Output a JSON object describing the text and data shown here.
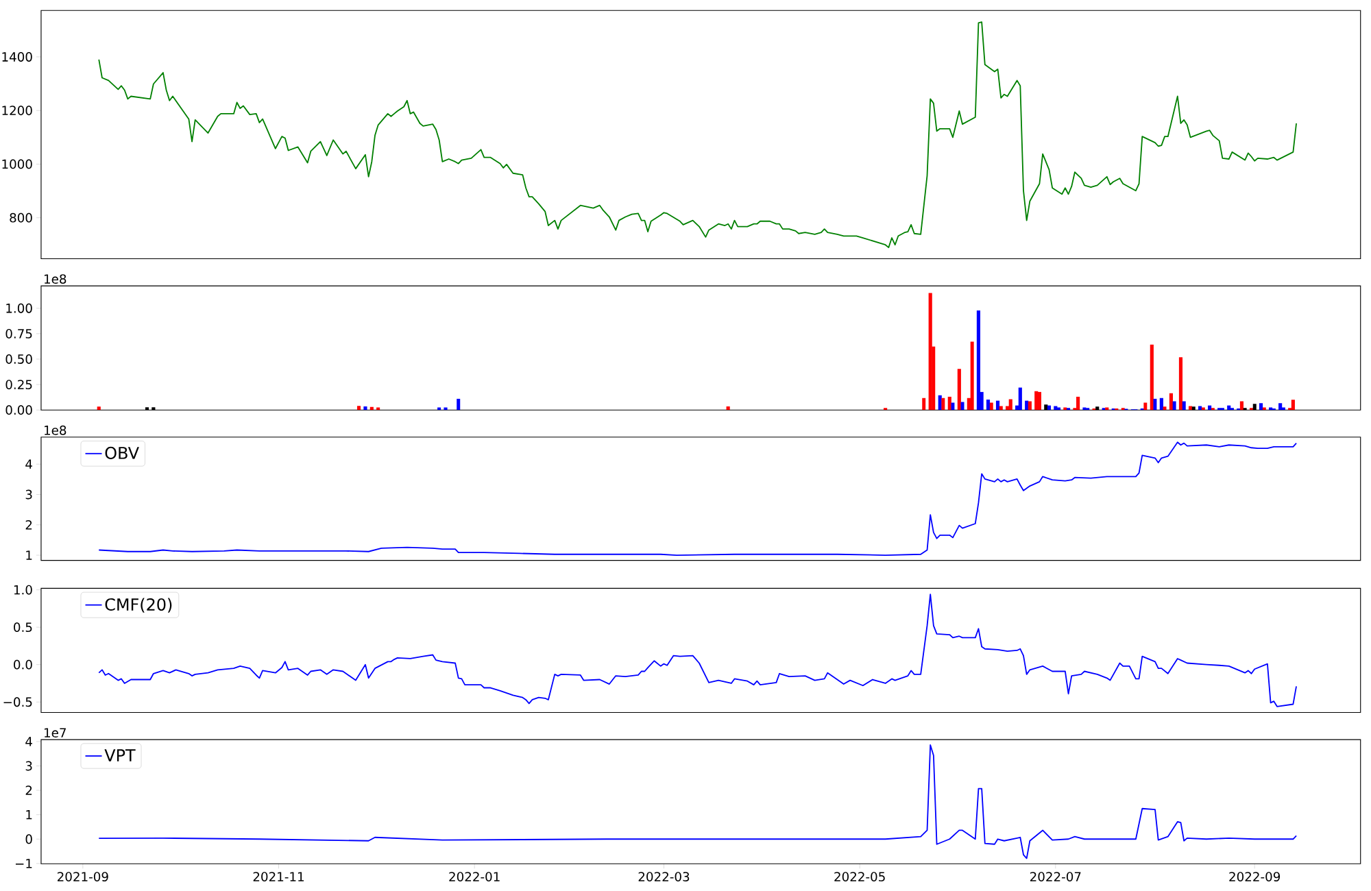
{
  "chart_data": [
    {
      "type": "line",
      "xlim": [
        "2021-08-19",
        "2022-10-04"
      ],
      "ylim": [
        647,
        1573
      ],
      "yticks": [
        800,
        1000,
        1200,
        1400
      ],
      "tick_labels": "y",
      "series": [
        {
          "color": "#008000",
          "x": [
            "2021-09-06",
            "2021-09-07",
            "2021-09-09",
            "2021-09-12",
            "2021-09-13",
            "2021-09-14",
            "2021-09-15",
            "2021-09-16",
            "2021-09-22",
            "2021-09-23",
            "2021-09-26",
            "2021-09-27",
            "2021-09-28",
            "2021-09-29",
            "2021-10-04",
            "2021-10-05",
            "2021-10-06",
            "2021-10-10",
            "2021-10-13",
            "2021-10-14",
            "2021-10-18",
            "2021-10-19",
            "2021-10-20",
            "2021-10-21",
            "2021-10-23",
            "2021-10-25",
            "2021-10-26",
            "2021-10-27",
            "2021-10-31",
            "2021-11-02",
            "2021-11-03",
            "2021-11-04",
            "2021-11-07",
            "2021-11-10",
            "2021-11-11",
            "2021-11-14",
            "2021-11-16",
            "2021-11-18",
            "2021-11-21",
            "2021-11-22",
            "2021-11-25",
            "2021-11-28",
            "2021-11-29",
            "2021-11-30",
            "2021-12-01",
            "2021-12-02",
            "2021-12-05",
            "2021-12-06",
            "2021-12-07",
            "2021-12-08",
            "2021-12-10",
            "2021-12-11",
            "2021-12-12",
            "2021-12-13",
            "2021-12-15",
            "2021-12-16",
            "2021-12-19",
            "2021-12-20",
            "2021-12-21",
            "2021-12-22",
            "2021-12-24",
            "2021-12-26",
            "2021-12-27",
            "2021-12-28",
            "2021-12-31",
            "2022-01-03",
            "2022-01-04",
            "2022-01-06",
            "2022-01-09",
            "2022-01-10",
            "2022-01-11",
            "2022-01-13",
            "2022-01-16",
            "2022-01-17",
            "2022-01-18",
            "2022-01-19",
            "2022-01-21",
            "2022-01-23",
            "2022-01-24",
            "2022-01-26",
            "2022-01-27",
            "2022-01-28",
            "2022-02-03",
            "2022-02-07",
            "2022-02-09",
            "2022-02-10",
            "2022-02-12",
            "2022-02-14",
            "2022-02-15",
            "2022-02-17",
            "2022-02-19",
            "2022-02-21",
            "2022-02-22",
            "2022-02-23",
            "2022-02-24",
            "2022-02-25",
            "2022-02-28",
            "2022-03-01",
            "2022-03-02",
            "2022-03-06",
            "2022-03-07",
            "2022-03-10",
            "2022-03-12",
            "2022-03-14",
            "2022-03-15",
            "2022-03-18",
            "2022-03-20",
            "2022-03-21",
            "2022-03-22",
            "2022-03-23",
            "2022-03-24",
            "2022-03-27",
            "2022-03-29",
            "2022-03-30",
            "2022-03-31",
            "2022-04-03",
            "2022-04-05",
            "2022-04-06",
            "2022-04-07",
            "2022-04-09",
            "2022-04-11",
            "2022-04-12",
            "2022-04-14",
            "2022-04-17",
            "2022-04-19",
            "2022-04-20",
            "2022-04-21",
            "2022-04-24",
            "2022-04-26",
            "2022-04-28",
            "2022-04-30",
            "2022-05-02",
            "2022-05-09",
            "2022-05-10",
            "2022-05-11",
            "2022-05-12",
            "2022-05-13",
            "2022-05-15",
            "2022-05-16",
            "2022-05-17",
            "2022-05-18",
            "2022-05-20",
            "2022-05-22",
            "2022-05-23",
            "2022-05-24",
            "2022-05-25",
            "2022-05-26",
            "2022-05-29",
            "2022-05-30",
            "2022-06-01",
            "2022-06-02",
            "2022-06-06",
            "2022-06-07",
            "2022-06-08",
            "2022-06-09",
            "2022-06-12",
            "2022-06-13",
            "2022-06-14",
            "2022-06-15",
            "2022-06-16",
            "2022-06-19",
            "2022-06-20",
            "2022-06-21",
            "2022-06-22",
            "2022-06-23",
            "2022-06-26",
            "2022-06-27",
            "2022-06-29",
            "2022-06-30",
            "2022-07-03",
            "2022-07-04",
            "2022-07-05",
            "2022-07-06",
            "2022-07-07",
            "2022-07-09",
            "2022-07-10",
            "2022-07-12",
            "2022-07-14",
            "2022-07-17",
            "2022-07-18",
            "2022-07-19",
            "2022-07-21",
            "2022-07-22",
            "2022-07-26",
            "2022-07-27",
            "2022-07-28",
            "2022-08-01",
            "2022-08-02",
            "2022-08-03",
            "2022-08-04",
            "2022-08-05",
            "2022-08-08",
            "2022-08-09",
            "2022-08-10",
            "2022-08-11",
            "2022-08-12",
            "2022-08-17",
            "2022-08-18",
            "2022-08-19",
            "2022-08-21",
            "2022-08-22",
            "2022-08-24",
            "2022-08-25",
            "2022-08-29",
            "2022-08-30",
            "2022-08-31",
            "2022-09-01",
            "2022-09-02",
            "2022-09-05",
            "2022-09-07",
            "2022-09-08",
            "2022-09-13",
            "2022-09-14"
          ],
          "values": [
            1390,
            1322,
            1312,
            1279,
            1292,
            1276,
            1243,
            1253,
            1243,
            1299,
            1341,
            1276,
            1237,
            1253,
            1168,
            1084,
            1165,
            1116,
            1178,
            1188,
            1188,
            1230,
            1208,
            1217,
            1185,
            1188,
            1155,
            1168,
            1058,
            1103,
            1097,
            1051,
            1064,
            1005,
            1048,
            1084,
            1032,
            1090,
            1038,
            1048,
            983,
            1035,
            953,
            1009,
            1107,
            1146,
            1188,
            1178,
            1188,
            1198,
            1214,
            1237,
            1188,
            1194,
            1152,
            1142,
            1149,
            1129,
            1090,
            1009,
            1019,
            1009,
            1002,
            1015,
            1022,
            1054,
            1025,
            1025,
            1002,
            986,
            999,
            966,
            960,
            911,
            878,
            878,
            852,
            823,
            771,
            790,
            758,
            790,
            846,
            836,
            846,
            829,
            803,
            754,
            790,
            803,
            813,
            816,
            790,
            790,
            748,
            787,
            810,
            819,
            816,
            787,
            774,
            790,
            767,
            728,
            754,
            777,
            771,
            777,
            758,
            790,
            767,
            767,
            777,
            777,
            787,
            787,
            777,
            777,
            758,
            758,
            751,
            741,
            745,
            738,
            745,
            758,
            745,
            738,
            732,
            732,
            732,
            725,
            699,
            689,
            725,
            699,
            732,
            745,
            748,
            774,
            741,
            738,
            957,
            1243,
            1227,
            1123,
            1132,
            1132,
            1100,
            1198,
            1149,
            1175,
            1527,
            1530,
            1371,
            1345,
            1354,
            1247,
            1260,
            1253,
            1312,
            1292,
            901,
            790,
            862,
            927,
            1038,
            979,
            911,
            888,
            911,
            888,
            917,
            970,
            947,
            921,
            914,
            921,
            953,
            924,
            934,
            947,
            927,
            901,
            927,
            1103,
            1080,
            1067,
            1070,
            1103,
            1103,
            1253,
            1152,
            1165,
            1146,
            1100,
            1123,
            1126,
            1107,
            1087,
            1022,
            1019,
            1045,
            1015,
            1041,
            1028,
            1012,
            1022,
            1019,
            1025,
            1015,
            1045,
            1152
          ]
        }
      ]
    },
    {
      "type": "bar",
      "xlim": [
        "2021-08-19",
        "2022-10-04"
      ],
      "ylim": [
        0,
        1.22
      ],
      "tick_labels": "y",
      "annotations": [
        "1e8"
      ],
      "yticks": [
        {
          "value": 0,
          "label": "0.00"
        },
        {
          "value": 0.25,
          "label": "0.25"
        },
        {
          "value": 0.5,
          "label": "0.50"
        },
        {
          "value": 0.75,
          "label": "0.75"
        },
        {
          "value": 1,
          "label": "1.00"
        }
      ],
      "x": [
        "2021-09-06",
        "2021-09-21",
        "2021-09-23",
        "2021-11-26",
        "2021-11-28",
        "2021-11-30",
        "2021-12-02",
        "2021-12-21",
        "2021-12-23",
        "2021-12-27",
        "2022-03-21",
        "2022-05-09",
        "2022-05-21",
        "2022-05-23",
        "2022-05-24",
        "2022-05-26",
        "2022-05-27",
        "2022-05-29",
        "2022-05-30",
        "2022-06-01",
        "2022-06-02",
        "2022-06-04",
        "2022-06-05",
        "2022-06-07",
        "2022-06-08",
        "2022-06-10",
        "2022-06-11",
        "2022-06-13",
        "2022-06-14",
        "2022-06-16",
        "2022-06-17",
        "2022-06-19",
        "2022-06-20",
        "2022-06-22",
        "2022-06-23",
        "2022-06-25",
        "2022-06-26",
        "2022-06-28",
        "2022-06-29",
        "2022-07-01",
        "2022-07-02",
        "2022-07-04",
        "2022-07-05",
        "2022-07-07",
        "2022-07-08",
        "2022-07-10",
        "2022-07-11",
        "2022-07-13",
        "2022-07-14",
        "2022-07-16",
        "2022-07-17",
        "2022-07-19",
        "2022-07-20",
        "2022-07-22",
        "2022-07-23",
        "2022-07-25",
        "2022-07-26",
        "2022-07-28",
        "2022-07-29",
        "2022-07-31",
        "2022-08-01",
        "2022-08-03",
        "2022-08-04",
        "2022-08-06",
        "2022-08-07",
        "2022-08-09",
        "2022-08-10",
        "2022-08-12",
        "2022-08-13",
        "2022-08-15",
        "2022-08-16",
        "2022-08-18",
        "2022-08-19",
        "2022-08-21",
        "2022-08-22",
        "2022-08-24",
        "2022-08-25",
        "2022-08-27",
        "2022-08-28",
        "2022-08-29",
        "2022-08-31",
        "2022-09-01",
        "2022-09-03",
        "2022-09-04",
        "2022-09-06",
        "2022-09-07",
        "2022-09-09",
        "2022-09-10",
        "2022-09-12",
        "2022-09-13"
      ],
      "values": [
        0.034,
        0.026,
        0.026,
        0.04,
        0.035,
        0.03,
        0.025,
        0.025,
        0.025,
        0.11,
        0.035,
        0.02,
        0.117,
        1.15,
        0.624,
        0.145,
        0.117,
        0.131,
        0.072,
        0.404,
        0.078,
        0.117,
        0.671,
        0.978,
        0.178,
        0.103,
        0.072,
        0.092,
        0.039,
        0.039,
        0.106,
        0.045,
        0.22,
        0.092,
        0.086,
        0.184,
        0.178,
        0.053,
        0.045,
        0.039,
        0.025,
        0.025,
        0.019,
        0.019,
        0.131,
        0.025,
        0.019,
        0.014,
        0.033,
        0.019,
        0.025,
        0.014,
        0.014,
        0.019,
        0.011,
        0.006,
        0.006,
        0.014,
        0.072,
        0.643,
        0.111,
        0.117,
        0.033,
        0.164,
        0.086,
        0.518,
        0.086,
        0.039,
        0.033,
        0.039,
        0.025,
        0.045,
        0.019,
        0.019,
        0.019,
        0.045,
        0.019,
        0.014,
        0.086,
        0.019,
        0.019,
        0.061,
        0.067,
        0.025,
        0.025,
        0.014,
        0.067,
        0.025,
        0.019,
        0.1
      ],
      "colors": [
        "#ff0000",
        "#000000",
        "#000000",
        "#ff0000",
        "#0000ff",
        "#ff0000",
        "#ff0000",
        "#0000ff",
        "#0000ff",
        "#0000ff",
        "#ff0000",
        "#ff0000",
        "#ff0000",
        "#ff0000",
        "#ff0000",
        "#0000ff",
        "#ff0000",
        "#ff0000",
        "#0000ff",
        "#ff0000",
        "#0000ff",
        "#ff0000",
        "#ff0000",
        "#0000ff",
        "#0000ff",
        "#0000ff",
        "#ff0000",
        "#0000ff",
        "#ff0000",
        "#ff0000",
        "#ff0000",
        "#0000ff",
        "#0000ff",
        "#0000ff",
        "#ff0000",
        "#ff0000",
        "#ff0000",
        "#000000",
        "#0000ff",
        "#0000ff",
        "#0000ff",
        "#ff0000",
        "#0000ff",
        "#ff0000",
        "#ff0000",
        "#0000ff",
        "#0000ff",
        "#ff0000",
        "#000000",
        "#0000ff",
        "#ff0000",
        "#0000ff",
        "#ff0000",
        "#ff0000",
        "#0000ff",
        "#0000ff",
        "#0000ff",
        "#0000ff",
        "#ff0000",
        "#ff0000",
        "#0000ff",
        "#0000ff",
        "#ff0000",
        "#ff0000",
        "#0000ff",
        "#ff0000",
        "#0000ff",
        "#ff0000",
        "#000000",
        "#0000ff",
        "#ff0000",
        "#0000ff",
        "#ff0000",
        "#0000ff",
        "#0000ff",
        "#0000ff",
        "#0000ff",
        "#0000ff",
        "#ff0000",
        "#000000",
        "#ff0000",
        "#000000",
        "#0000ff",
        "#ff0000",
        "#0000ff",
        "#0000ff",
        "#0000ff",
        "#0000ff",
        "#ff0000",
        "#ff0000"
      ]
    },
    {
      "type": "line",
      "xlim": [
        "2021-08-19",
        "2022-10-04"
      ],
      "ylim": [
        0.83,
        4.89
      ],
      "yticks": [
        1,
        2,
        3,
        4
      ],
      "tick_labels": "y",
      "legend": "top left",
      "annotations": [
        "1e8"
      ],
      "series": [
        {
          "name": "OBV",
          "color": "#0000ff",
          "x": [
            "2021-09-06",
            "2021-09-15",
            "2021-09-22",
            "2021-09-26",
            "2021-09-29",
            "2021-10-05",
            "2021-10-15",
            "2021-10-19",
            "2021-10-26",
            "2021-11-01",
            "2021-11-22",
            "2021-11-29",
            "2021-12-03",
            "2021-12-11",
            "2021-12-19",
            "2021-12-22",
            "2021-12-26",
            "2021-12-27",
            "2022-01-04",
            "2022-01-15",
            "2022-01-26",
            "2022-02-11",
            "2022-02-28",
            "2022-03-05",
            "2022-03-23",
            "2022-04-07",
            "2022-04-24",
            "2022-05-09",
            "2022-05-20",
            "2022-05-22",
            "2022-05-23",
            "2022-05-24",
            "2022-05-25",
            "2022-05-26",
            "2022-05-29",
            "2022-05-30",
            "2022-06-01",
            "2022-06-02",
            "2022-06-06",
            "2022-06-07",
            "2022-06-08",
            "2022-06-09",
            "2022-06-12",
            "2022-06-13",
            "2022-06-14",
            "2022-06-15",
            "2022-06-16",
            "2022-06-19",
            "2022-06-20",
            "2022-06-21",
            "2022-06-23",
            "2022-06-26",
            "2022-06-27",
            "2022-06-30",
            "2022-07-04",
            "2022-07-06",
            "2022-07-07",
            "2022-07-12",
            "2022-07-17",
            "2022-07-22",
            "2022-07-26",
            "2022-07-27",
            "2022-07-28",
            "2022-08-01",
            "2022-08-02",
            "2022-08-03",
            "2022-08-05",
            "2022-08-08",
            "2022-08-09",
            "2022-08-10",
            "2022-08-11",
            "2022-08-17",
            "2022-08-21",
            "2022-08-24",
            "2022-08-29",
            "2022-08-31",
            "2022-09-02",
            "2022-09-05",
            "2022-09-07",
            "2022-09-13",
            "2022-09-14"
          ],
          "values": [
            1.17,
            1.12,
            1.12,
            1.17,
            1.14,
            1.12,
            1.14,
            1.17,
            1.14,
            1.14,
            1.14,
            1.12,
            1.23,
            1.26,
            1.23,
            1.2,
            1.2,
            1.09,
            1.09,
            1.06,
            1.03,
            1.03,
            1.03,
            1.0,
            1.03,
            1.03,
            1.03,
            1.0,
            1.03,
            1.17,
            2.33,
            1.75,
            1.55,
            1.66,
            1.66,
            1.58,
            1.98,
            1.89,
            2.04,
            2.73,
            3.68,
            3.51,
            3.42,
            3.51,
            3.42,
            3.48,
            3.42,
            3.51,
            3.31,
            3.13,
            3.28,
            3.42,
            3.59,
            3.48,
            3.45,
            3.48,
            3.56,
            3.54,
            3.59,
            3.59,
            3.59,
            3.71,
            4.29,
            4.2,
            4.05,
            4.2,
            4.26,
            4.72,
            4.63,
            4.69,
            4.6,
            4.63,
            4.57,
            4.63,
            4.6,
            4.54,
            4.52,
            4.52,
            4.57,
            4.57,
            4.69
          ]
        }
      ]
    },
    {
      "type": "line",
      "xlim": [
        "2021-08-19",
        "2022-10-04"
      ],
      "ylim": [
        -0.64,
        1.02
      ],
      "tick_labels": "y",
      "legend": "top left",
      "yticks": [
        {
          "value": -0.5,
          "label": "−0.5"
        },
        {
          "value": 0,
          "label": "0.0"
        },
        {
          "value": 0.5,
          "label": "0.5"
        },
        {
          "value": 1,
          "label": "1.0"
        }
      ],
      "series": [
        {
          "name": "CMF(20)",
          "color": "#0000ff",
          "x": [
            "2021-09-06",
            "2021-09-07",
            "2021-09-08",
            "2021-09-09",
            "2021-09-12",
            "2021-09-13",
            "2021-09-14",
            "2021-09-16",
            "2021-09-22",
            "2021-09-23",
            "2021-09-26",
            "2021-09-28",
            "2021-09-30",
            "2021-10-04",
            "2021-10-05",
            "2021-10-06",
            "2021-10-10",
            "2021-10-13",
            "2021-10-18",
            "2021-10-20",
            "2021-10-23",
            "2021-10-25",
            "2021-10-26",
            "2021-10-27",
            "2021-10-31",
            "2021-11-02",
            "2021-11-03",
            "2021-11-04",
            "2021-11-07",
            "2021-11-10",
            "2021-11-11",
            "2021-11-14",
            "2021-11-16",
            "2021-11-18",
            "2021-11-21",
            "2021-11-22",
            "2021-11-25",
            "2021-11-28",
            "2021-11-29",
            "2021-12-01",
            "2021-12-05",
            "2021-12-06",
            "2021-12-07",
            "2021-12-08",
            "2021-12-12",
            "2021-12-16",
            "2021-12-19",
            "2021-12-20",
            "2021-12-22",
            "2021-12-26",
            "2021-12-27",
            "2021-12-28",
            "2021-12-29",
            "2022-01-03",
            "2022-01-04",
            "2022-01-06",
            "2022-01-09",
            "2022-01-13",
            "2022-01-16",
            "2022-01-17",
            "2022-01-18",
            "2022-01-19",
            "2022-01-21",
            "2022-01-23",
            "2022-01-24",
            "2022-01-26",
            "2022-01-27",
            "2022-01-28",
            "2022-02-03",
            "2022-02-04",
            "2022-02-09",
            "2022-02-12",
            "2022-02-14",
            "2022-02-17",
            "2022-02-21",
            "2022-02-22",
            "2022-02-23",
            "2022-02-24",
            "2022-02-26",
            "2022-02-28",
            "2022-03-01",
            "2022-03-02",
            "2022-03-04",
            "2022-03-06",
            "2022-03-10",
            "2022-03-12",
            "2022-03-15",
            "2022-03-18",
            "2022-03-22",
            "2022-03-23",
            "2022-03-27",
            "2022-03-29",
            "2022-03-30",
            "2022-03-31",
            "2022-04-05",
            "2022-04-06",
            "2022-04-09",
            "2022-04-14",
            "2022-04-17",
            "2022-04-20",
            "2022-04-21",
            "2022-04-26",
            "2022-04-28",
            "2022-05-02",
            "2022-05-05",
            "2022-05-09",
            "2022-05-11",
            "2022-05-12",
            "2022-05-16",
            "2022-05-17",
            "2022-05-18",
            "2022-05-20",
            "2022-05-22",
            "2022-05-23",
            "2022-05-24",
            "2022-05-25",
            "2022-05-29",
            "2022-05-30",
            "2022-06-01",
            "2022-06-02",
            "2022-06-06",
            "2022-06-07",
            "2022-06-08",
            "2022-06-09",
            "2022-06-13",
            "2022-06-16",
            "2022-06-19",
            "2022-06-20",
            "2022-06-21",
            "2022-06-22",
            "2022-06-23",
            "2022-06-27",
            "2022-06-30",
            "2022-07-04",
            "2022-07-05",
            "2022-07-06",
            "2022-07-09",
            "2022-07-10",
            "2022-07-14",
            "2022-07-17",
            "2022-07-18",
            "2022-07-21",
            "2022-07-22",
            "2022-07-24",
            "2022-07-26",
            "2022-07-27",
            "2022-07-28",
            "2022-08-01",
            "2022-08-02",
            "2022-08-03",
            "2022-08-05",
            "2022-08-08",
            "2022-08-09",
            "2022-08-11",
            "2022-08-17",
            "2022-08-21",
            "2022-08-24",
            "2022-08-29",
            "2022-08-30",
            "2022-08-31",
            "2022-09-01",
            "2022-09-05",
            "2022-09-06",
            "2022-09-07",
            "2022-09-08",
            "2022-09-13",
            "2022-09-14"
          ],
          "values": [
            -0.11,
            -0.07,
            -0.14,
            -0.12,
            -0.21,
            -0.19,
            -0.25,
            -0.2,
            -0.2,
            -0.12,
            -0.08,
            -0.11,
            -0.07,
            -0.12,
            -0.15,
            -0.13,
            -0.11,
            -0.07,
            -0.05,
            -0.02,
            -0.05,
            -0.14,
            -0.18,
            -0.08,
            -0.11,
            -0.04,
            0.04,
            -0.07,
            -0.05,
            -0.14,
            -0.09,
            -0.07,
            -0.13,
            -0.07,
            -0.09,
            -0.12,
            -0.21,
            0.0,
            -0.18,
            -0.05,
            0.04,
            0.04,
            0.07,
            0.09,
            0.08,
            0.11,
            0.13,
            0.06,
            0.04,
            0.02,
            -0.18,
            -0.19,
            -0.27,
            -0.27,
            -0.31,
            -0.31,
            -0.35,
            -0.41,
            -0.44,
            -0.47,
            -0.52,
            -0.47,
            -0.44,
            -0.45,
            -0.47,
            -0.13,
            -0.15,
            -0.13,
            -0.14,
            -0.21,
            -0.2,
            -0.26,
            -0.15,
            -0.16,
            -0.14,
            -0.09,
            -0.09,
            -0.04,
            0.05,
            -0.02,
            0.01,
            -0.01,
            0.12,
            0.11,
            0.12,
            0.02,
            -0.24,
            -0.21,
            -0.25,
            -0.19,
            -0.22,
            -0.27,
            -0.22,
            -0.27,
            -0.24,
            -0.12,
            -0.16,
            -0.15,
            -0.21,
            -0.19,
            -0.11,
            -0.26,
            -0.21,
            -0.28,
            -0.2,
            -0.25,
            -0.19,
            -0.21,
            -0.15,
            -0.08,
            -0.13,
            -0.13,
            0.52,
            0.94,
            0.52,
            0.41,
            0.4,
            0.36,
            0.38,
            0.36,
            0.36,
            0.48,
            0.24,
            0.21,
            0.2,
            0.18,
            0.19,
            0.21,
            0.12,
            -0.13,
            -0.07,
            -0.02,
            -0.09,
            -0.09,
            -0.39,
            -0.15,
            -0.13,
            -0.09,
            -0.13,
            -0.18,
            -0.21,
            0.02,
            -0.02,
            -0.02,
            -0.19,
            -0.19,
            0.11,
            0.04,
            -0.05,
            -0.05,
            -0.12,
            0.08,
            0.06,
            0.02,
            0.0,
            -0.01,
            -0.02,
            -0.11,
            -0.08,
            -0.12,
            -0.06,
            0.01,
            -0.51,
            -0.49,
            -0.56,
            -0.53,
            -0.29
          ]
        }
      ]
    },
    {
      "type": "line",
      "xlim": [
        "2021-08-19",
        "2022-10-04"
      ],
      "ylim": [
        -1.01,
        4.08
      ],
      "legend": "top left",
      "annotations": [
        "1e7"
      ],
      "yticks": [
        {
          "value": -1,
          "label": "−1"
        },
        0,
        1,
        2,
        3,
        4
      ],
      "xticks": [
        {
          "value": "2021-09-01",
          "label": "2021-09"
        },
        {
          "value": "2021-11-01",
          "label": "2021-11"
        },
        {
          "value": "2022-01-01",
          "label": "2022-01"
        },
        {
          "value": "2022-03-01",
          "label": "2022-03"
        },
        {
          "value": "2022-05-01",
          "label": "2022-05"
        },
        {
          "value": "2022-07-01",
          "label": "2022-07"
        },
        {
          "value": "2022-09-01",
          "label": "2022-09"
        }
      ],
      "series": [
        {
          "name": "VPT",
          "color": "#0000ff",
          "x": [
            "2021-09-06",
            "2021-09-26",
            "2021-10-26",
            "2021-11-29",
            "2021-12-01",
            "2021-12-22",
            "2022-02-11",
            "2022-04-07",
            "2022-05-09",
            "2022-05-20",
            "2022-05-22",
            "2022-05-23",
            "2022-05-24",
            "2022-05-25",
            "2022-05-29",
            "2022-06-01",
            "2022-06-02",
            "2022-06-06",
            "2022-06-07",
            "2022-06-08",
            "2022-06-09",
            "2022-06-12",
            "2022-06-13",
            "2022-06-15",
            "2022-06-19",
            "2022-06-20",
            "2022-06-21",
            "2022-06-22",
            "2022-06-23",
            "2022-06-27",
            "2022-06-30",
            "2022-07-05",
            "2022-07-07",
            "2022-07-10",
            "2022-07-26",
            "2022-07-28",
            "2022-08-01",
            "2022-08-02",
            "2022-08-05",
            "2022-08-08",
            "2022-08-09",
            "2022-08-10",
            "2022-08-11",
            "2022-08-17",
            "2022-08-24",
            "2022-09-01",
            "2022-09-13",
            "2022-09-14"
          ],
          "values": [
            0.03,
            0.04,
            0.0,
            -0.07,
            0.07,
            -0.04,
            0.0,
            0.0,
            0.0,
            0.1,
            0.36,
            3.86,
            3.43,
            -0.21,
            0.0,
            0.36,
            0.36,
            0.0,
            2.07,
            2.07,
            -0.18,
            -0.21,
            0.0,
            -0.07,
            0.04,
            0.07,
            -0.64,
            -0.79,
            -0.07,
            0.36,
            -0.04,
            0.0,
            0.1,
            0.0,
            0.0,
            1.25,
            1.21,
            -0.04,
            0.1,
            0.71,
            0.68,
            -0.07,
            0.04,
            0.0,
            0.04,
            0.0,
            0.0,
            0.14
          ]
        }
      ]
    }
  ]
}
